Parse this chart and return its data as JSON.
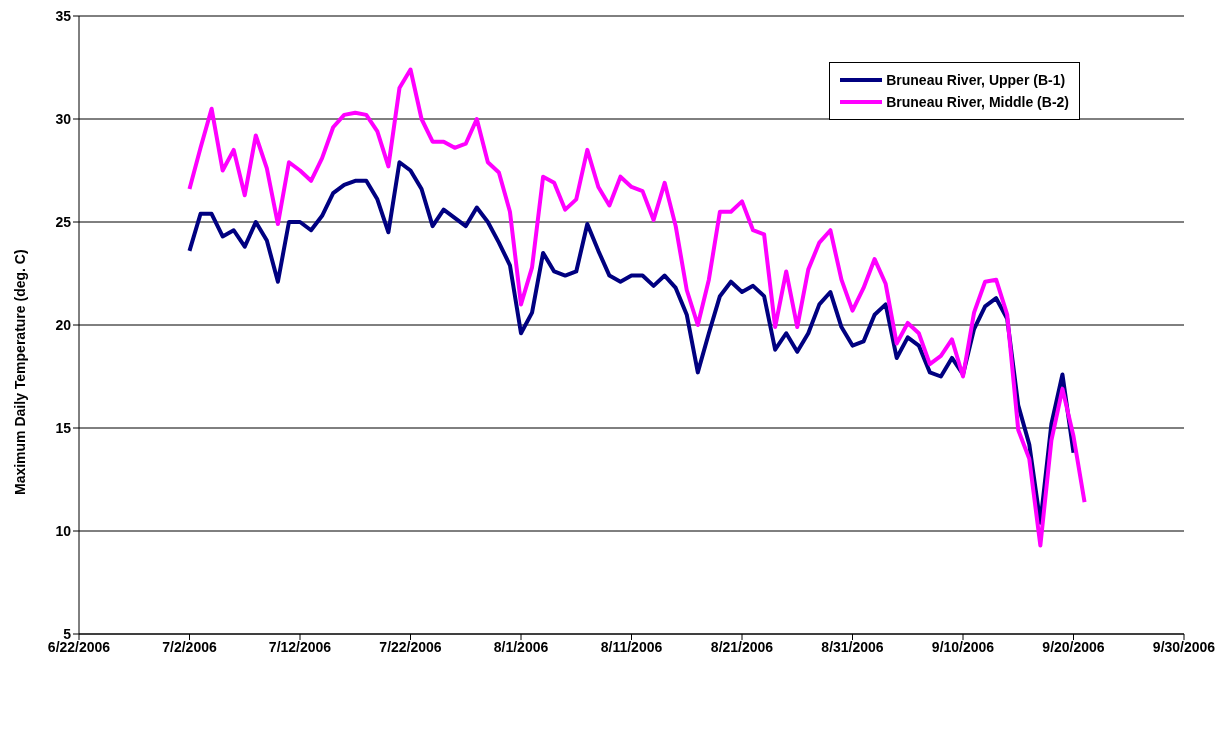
{
  "chart_data": {
    "type": "line",
    "ylabel": "Maximum Daily Temperature (deg. C)",
    "x": [
      "2006-07-02",
      "2006-07-03",
      "2006-07-04",
      "2006-07-05",
      "2006-07-06",
      "2006-07-07",
      "2006-07-08",
      "2006-07-09",
      "2006-07-10",
      "2006-07-11",
      "2006-07-12",
      "2006-07-13",
      "2006-07-14",
      "2006-07-15",
      "2006-07-16",
      "2006-07-17",
      "2006-07-18",
      "2006-07-19",
      "2006-07-20",
      "2006-07-21",
      "2006-07-22",
      "2006-07-23",
      "2006-07-24",
      "2006-07-25",
      "2006-07-26",
      "2006-07-27",
      "2006-07-28",
      "2006-07-29",
      "2006-07-30",
      "2006-07-31",
      "2006-08-01",
      "2006-08-02",
      "2006-08-03",
      "2006-08-04",
      "2006-08-05",
      "2006-08-06",
      "2006-08-07",
      "2006-08-08",
      "2006-08-09",
      "2006-08-10",
      "2006-08-11",
      "2006-08-12",
      "2006-08-13",
      "2006-08-14",
      "2006-08-15",
      "2006-08-16",
      "2006-08-17",
      "2006-08-18",
      "2006-08-19",
      "2006-08-20",
      "2006-08-21",
      "2006-08-22",
      "2006-08-23",
      "2006-08-24",
      "2006-08-25",
      "2006-08-26",
      "2006-08-27",
      "2006-08-28",
      "2006-08-29",
      "2006-08-30",
      "2006-08-31",
      "2006-09-01",
      "2006-09-02",
      "2006-09-03",
      "2006-09-04",
      "2006-09-05",
      "2006-09-06",
      "2006-09-07",
      "2006-09-08",
      "2006-09-09",
      "2006-09-10",
      "2006-09-11",
      "2006-09-12",
      "2006-09-13",
      "2006-09-14",
      "2006-09-15",
      "2006-09-16",
      "2006-09-17",
      "2006-09-18",
      "2006-09-19",
      "2006-09-20",
      "2006-09-21"
    ],
    "series": [
      {
        "name": "Bruneau River, Upper (B-1)",
        "color": "#000080",
        "values": [
          23.6,
          25.4,
          25.4,
          24.3,
          24.6,
          23.8,
          25.0,
          24.1,
          22.1,
          25.0,
          25.0,
          24.6,
          25.3,
          26.4,
          26.8,
          27.0,
          27.0,
          26.1,
          24.5,
          27.9,
          27.5,
          26.6,
          24.8,
          25.6,
          25.2,
          24.8,
          25.7,
          25.0,
          24.0,
          22.9,
          19.6,
          20.6,
          23.5,
          22.6,
          22.4,
          22.6,
          24.9,
          23.6,
          22.4,
          22.1,
          22.4,
          22.4,
          21.9,
          22.4,
          21.8,
          20.5,
          17.7,
          19.6,
          21.4,
          22.1,
          21.6,
          21.9,
          21.4,
          18.8,
          19.6,
          18.7,
          19.6,
          21.0,
          21.6,
          19.9,
          19.0,
          19.2,
          20.5,
          21.0,
          18.4,
          19.4,
          19.0,
          17.7,
          17.5,
          18.4,
          17.6,
          19.8,
          20.9,
          21.3,
          20.3,
          16.1,
          14.2,
          10.4,
          15.2,
          17.6,
          13.8,
          null
        ]
      },
      {
        "name": "Bruneau River, Middle (B-2)",
        "color": "#ff00ff",
        "values": [
          26.6,
          28.6,
          30.5,
          27.5,
          28.5,
          26.3,
          29.2,
          27.6,
          24.9,
          27.9,
          27.5,
          27.0,
          28.1,
          29.6,
          30.2,
          30.3,
          30.2,
          29.4,
          27.7,
          31.5,
          32.4,
          30.0,
          28.9,
          28.9,
          28.6,
          28.8,
          30.0,
          27.9,
          27.4,
          25.5,
          21.0,
          22.8,
          27.2,
          26.9,
          25.6,
          26.1,
          28.5,
          26.7,
          25.8,
          27.2,
          26.7,
          26.5,
          25.1,
          26.9,
          24.8,
          21.7,
          20.0,
          22.2,
          25.5,
          25.5,
          26.0,
          24.6,
          24.4,
          19.9,
          22.6,
          19.9,
          22.7,
          24.0,
          24.6,
          22.2,
          20.7,
          21.8,
          23.2,
          22.0,
          19.1,
          20.1,
          19.6,
          18.1,
          18.5,
          19.3,
          17.5,
          20.6,
          22.1,
          22.2,
          20.5,
          14.9,
          13.5,
          9.3,
          14.4,
          16.9,
          14.6,
          11.4
        ]
      }
    ],
    "xlim": [
      "2006-06-22",
      "2006-09-30"
    ],
    "xticks": [
      {
        "value": "2006-06-22",
        "label": "6/22/2006"
      },
      {
        "value": "2006-07-02",
        "label": "7/2/2006"
      },
      {
        "value": "2006-07-12",
        "label": "7/12/2006"
      },
      {
        "value": "2006-07-22",
        "label": "7/22/2006"
      },
      {
        "value": "2006-08-01",
        "label": "8/1/2006"
      },
      {
        "value": "2006-08-11",
        "label": "8/11/2006"
      },
      {
        "value": "2006-08-21",
        "label": "8/21/2006"
      },
      {
        "value": "2006-08-31",
        "label": "8/31/2006"
      },
      {
        "value": "2006-09-10",
        "label": "9/10/2006"
      },
      {
        "value": "2006-09-20",
        "label": "9/20/2006"
      },
      {
        "value": "2006-09-30",
        "label": "9/30/2006"
      }
    ],
    "ylim": [
      5,
      35
    ],
    "yticks": [
      5,
      10,
      15,
      20,
      25,
      30,
      35
    ],
    "grid": "y",
    "legend": "top right",
    "marker": "none",
    "line_style": "solid"
  }
}
